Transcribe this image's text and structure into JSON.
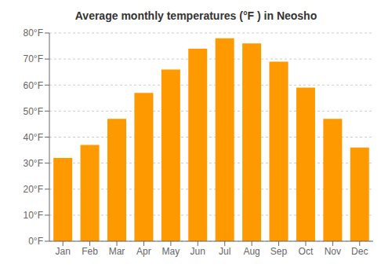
{
  "chart_data": {
    "type": "bar",
    "title": "Average monthly temperatures (°F ) in Neosho",
    "categories": [
      "Jan",
      "Feb",
      "Mar",
      "Apr",
      "May",
      "Jun",
      "Jul",
      "Aug",
      "Sep",
      "Oct",
      "Nov",
      "Dec"
    ],
    "values": [
      32,
      37,
      47,
      57,
      66,
      74,
      78,
      76,
      69,
      59,
      47,
      36
    ],
    "color": "#FF9900",
    "ylim": [
      0,
      80
    ],
    "yticks": [
      {
        "value": 0,
        "label": "0°F"
      },
      {
        "value": 10,
        "label": "10°F"
      },
      {
        "value": 20,
        "label": "20°F"
      },
      {
        "value": 30,
        "label": "30°F"
      },
      {
        "value": 40,
        "label": "40°F"
      },
      {
        "value": 50,
        "label": "50°F"
      },
      {
        "value": 60,
        "label": "60°F"
      },
      {
        "value": 70,
        "label": "70°F"
      },
      {
        "value": 80,
        "label": "80°F"
      }
    ],
    "grid": true
  }
}
